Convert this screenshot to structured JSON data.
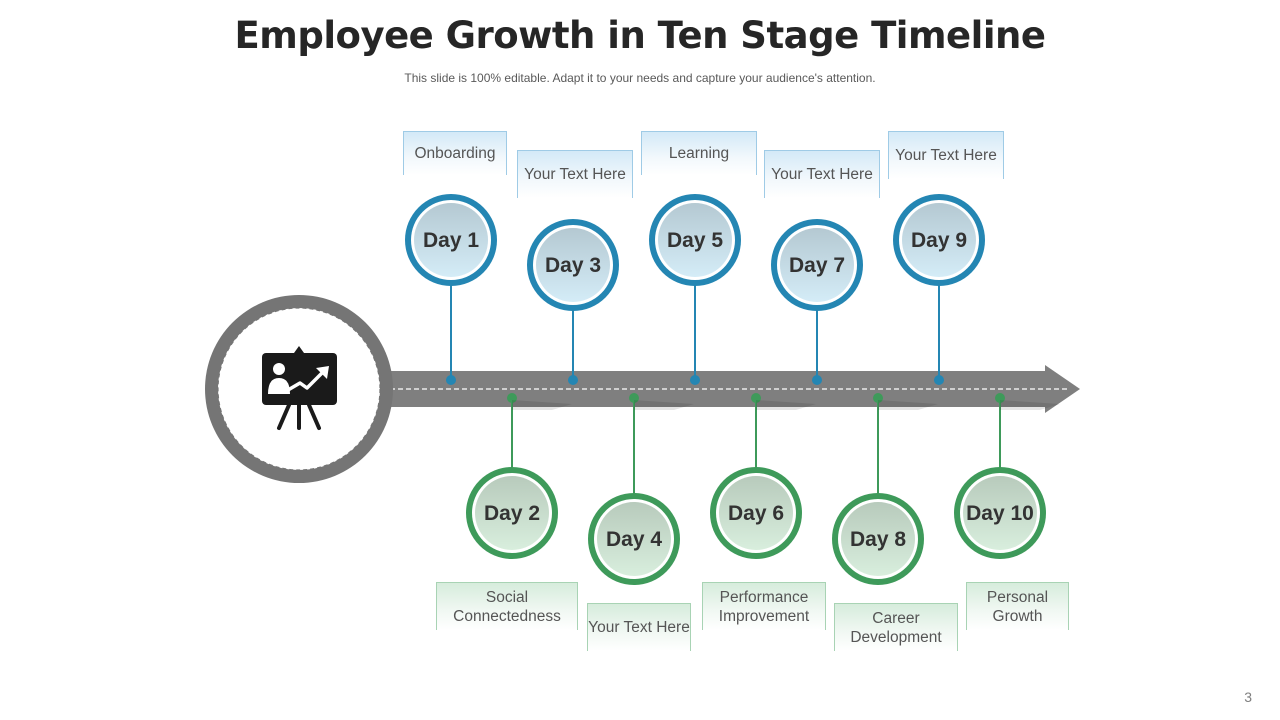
{
  "header": {
    "title": "Employee Growth in Ten Stage Timeline",
    "subtitle": "This slide is 100% editable. Adapt it to your needs and capture your audience's attention."
  },
  "colors": {
    "top_accent": "#2486b3",
    "top_fill": "#d4ecf7",
    "bottom_accent": "#3e9a5a",
    "bottom_fill": "#d8eedd",
    "arrow": "#7f7f7f",
    "hub": "#757575"
  },
  "hub": {
    "icon": "presentation-growth-icon"
  },
  "stages": [
    {
      "day": "Day 1",
      "label": "Onboarding"
    },
    {
      "day": "Day 2",
      "label": "Social Connectedness"
    },
    {
      "day": "Day 3",
      "label": "Your Text Here"
    },
    {
      "day": "Day 4",
      "label": "Your Text Here"
    },
    {
      "day": "Day 5",
      "label": "Learning"
    },
    {
      "day": "Day 6",
      "label": "Performance Improvement"
    },
    {
      "day": "Day 7",
      "label": "Your Text Here"
    },
    {
      "day": "Day 8",
      "label": "Career Development"
    },
    {
      "day": "Day 9",
      "label": "Your Text Here"
    },
    {
      "day": "Day 10",
      "label": "Personal Growth"
    }
  ],
  "footer": {
    "page_number": "3"
  }
}
